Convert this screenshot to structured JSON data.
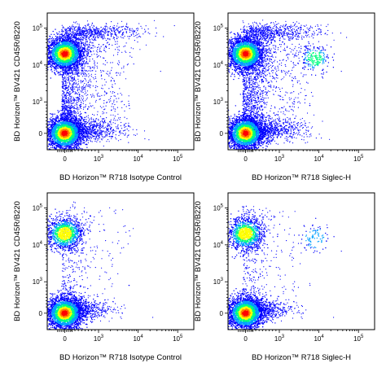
{
  "chart_data": [
    {
      "type": "scatter",
      "title": "",
      "xlabel": "BD Horizon™ R718 Isotype Control",
      "ylabel": "BD Horizon™ BV421 CD45R/B220",
      "x_scale": "biexponential",
      "y_scale": "biexponential",
      "x_tick_labels": [
        "0",
        "10^3",
        "10^4",
        "10^5"
      ],
      "y_tick_labels": [
        "0",
        "10^3",
        "10^4",
        "10^5"
      ],
      "xlim": [
        -500,
        100000
      ],
      "ylim": [
        -500,
        100000
      ],
      "populations": [
        {
          "name": "",
          "x_center": 0,
          "y_center": 20000,
          "density": "high"
        },
        {
          "name": "",
          "x_center": 0,
          "y_center": 0,
          "density": "high"
        }
      ]
    },
    {
      "type": "scatter",
      "title": "",
      "xlabel": "BD Horizon™ R718 Siglec-H",
      "ylabel": "BD Horizon™ BV421 CD45R/B220",
      "x_scale": "biexponential",
      "y_scale": "biexponential",
      "x_tick_labels": [
        "0",
        "10^3",
        "10^4",
        "10^5"
      ],
      "y_tick_labels": [
        "0",
        "10^3",
        "10^4",
        "10^5"
      ],
      "xlim": [
        -500,
        100000
      ],
      "ylim": [
        -500,
        100000
      ],
      "populations": [
        {
          "name": "",
          "x_center": 0,
          "y_center": 20000,
          "density": "high"
        },
        {
          "name": "",
          "x_center": 0,
          "y_center": 0,
          "density": "high"
        },
        {
          "name": "",
          "x_center": 8000,
          "y_center": 15000,
          "density": "medium"
        }
      ]
    },
    {
      "type": "scatter",
      "title": "",
      "xlabel": "BD Horizon™ R718 Isotype Control",
      "ylabel": "BD Horizon™ BV421 CD45R/B220",
      "x_scale": "biexponential",
      "y_scale": "biexponential",
      "x_tick_labels": [
        "0",
        "10^3",
        "10^4",
        "10^5"
      ],
      "y_tick_labels": [
        "0",
        "10^3",
        "10^4",
        "10^5"
      ],
      "xlim": [
        -500,
        100000
      ],
      "ylim": [
        -500,
        100000
      ],
      "populations": [
        {
          "name": "",
          "x_center": 0,
          "y_center": 20000,
          "density": "medium"
        },
        {
          "name": "",
          "x_center": 0,
          "y_center": 0,
          "density": "high"
        }
      ]
    },
    {
      "type": "scatter",
      "title": "",
      "xlabel": "BD Horizon™ R718 Siglec-H",
      "ylabel": "BD Horizon™ BV421 CD45R/B220",
      "x_scale": "biexponential",
      "y_scale": "biexponential",
      "x_tick_labels": [
        "0",
        "10^3",
        "10^4",
        "10^5"
      ],
      "y_tick_labels": [
        "0",
        "10^3",
        "10^4",
        "10^5"
      ],
      "xlim": [
        -500,
        100000
      ],
      "ylim": [
        -500,
        100000
      ],
      "populations": [
        {
          "name": "",
          "x_center": 0,
          "y_center": 20000,
          "density": "medium"
        },
        {
          "name": "",
          "x_center": 0,
          "y_center": 0,
          "density": "high"
        },
        {
          "name": "",
          "x_center": 8000,
          "y_center": 15000,
          "density": "low"
        }
      ]
    }
  ],
  "colors": {
    "density_scale": [
      "#0000ff",
      "#00a0ff",
      "#00ff80",
      "#ffff00",
      "#ff8000",
      "#ff0000"
    ]
  }
}
